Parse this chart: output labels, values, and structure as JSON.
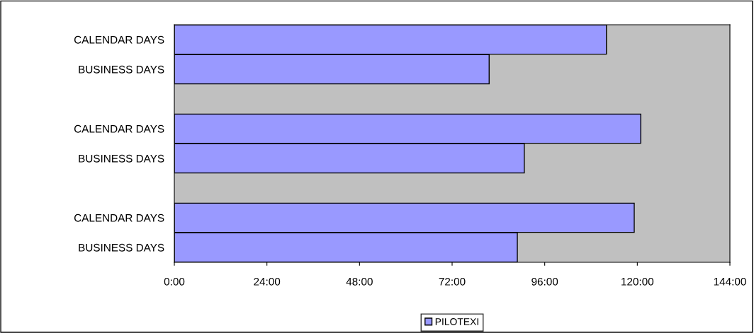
{
  "chart_data": {
    "type": "bar",
    "orientation": "horizontal",
    "categories": [
      "CALENDAR DAYS",
      "BUSINESS DAYS",
      null,
      "CALENDAR DAYS",
      "BUSINESS DAYS",
      null,
      "CALENDAR DAYS",
      "BUSINESS DAYS"
    ],
    "series": [
      {
        "name": "PILOTEXI",
        "color": "#9999ff",
        "values": [
          112,
          81.6,
          null,
          120.9,
          90.7,
          null,
          119.2,
          88.9
        ]
      }
    ],
    "xlim": [
      0,
      144
    ],
    "xticks": [
      {
        "value": 0,
        "label": "0:00"
      },
      {
        "value": 24,
        "label": "24:00"
      },
      {
        "value": 48,
        "label": "48:00"
      },
      {
        "value": 72,
        "label": "72:00"
      },
      {
        "value": 96,
        "label": "96:00"
      },
      {
        "value": 120,
        "label": "120:00"
      },
      {
        "value": 144,
        "label": "144:00"
      }
    ],
    "grid": false,
    "legend": "bottom"
  }
}
